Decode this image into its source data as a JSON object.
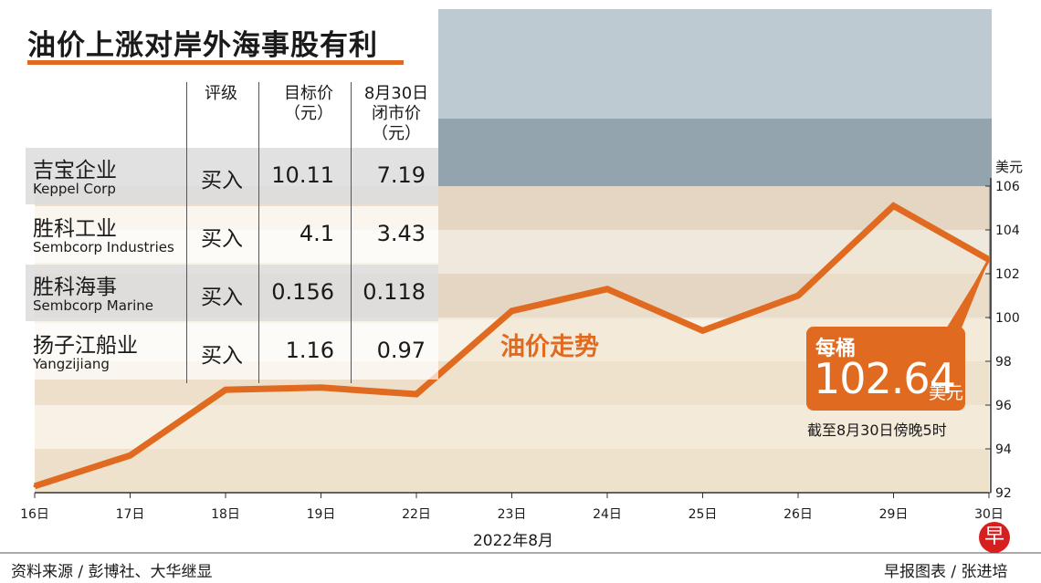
{
  "title": "油价上涨对岸外海事股有利",
  "table": {
    "headers": {
      "rating": "评级",
      "target_line1": "目标价",
      "target_line2": "（元）",
      "close_line1": "8月30日",
      "close_line2": "闭市价",
      "close_line3": "（元）"
    },
    "rows": [
      {
        "cn": "吉宝企业",
        "en": "Keppel Corp",
        "rating": "买入",
        "target": "10.11",
        "close": "7.19"
      },
      {
        "cn": "胜科工业",
        "en": "Sembcorp Industries",
        "rating": "买入",
        "target": "4.1",
        "close": "3.43"
      },
      {
        "cn": "胜科海事",
        "en": "Sembcorp Marine",
        "rating": "买入",
        "target": "0.156",
        "close": "0.118"
      },
      {
        "cn": "扬子江船业",
        "en": "Yangzijiang",
        "rating": "买入",
        "target": "1.16",
        "close": "0.97"
      }
    ]
  },
  "callout": {
    "label": "每桶",
    "value": "102.64",
    "unit": "美元",
    "note": "截至8月30日傍晚5时"
  },
  "footer": {
    "source": "资料来源 / 彭博社、大华继显",
    "credit": "早报图表 / 张进培",
    "logo_char": "早"
  },
  "colors": {
    "line": "#e06a1f",
    "callout": "#e06a1f",
    "band_light": "#f7efe2",
    "band_dark": "#ecdcc4"
  },
  "chart_data": {
    "type": "line",
    "series_label": "油价走势",
    "ylabel": "美元",
    "xlabel": "2022年8月",
    "categories": [
      "16日",
      "17日",
      "18日",
      "19日",
      "22日",
      "23日",
      "24日",
      "25日",
      "26日",
      "29日",
      "30日"
    ],
    "series": [
      {
        "values": [
          92.3,
          93.7,
          96.7,
          96.8,
          96.5,
          100.3,
          101.3,
          99.4,
          101.0,
          105.1,
          102.64
        ]
      }
    ],
    "ylim": [
      92,
      107
    ],
    "yticks": [
      92,
      94,
      96,
      98,
      100,
      102,
      104,
      106
    ],
    "grid": false
  }
}
